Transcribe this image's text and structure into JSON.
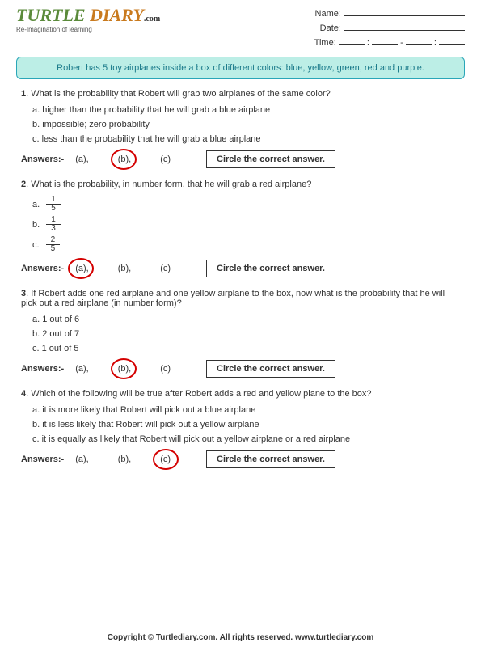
{
  "logo": {
    "part1": "TURTLE",
    "part2": "DIARY",
    "dotcom": ".com",
    "tagline": "Re-Imagination of learning"
  },
  "fields": {
    "name": "Name:",
    "date": "Date:",
    "time": "Time:",
    "colon": ":",
    "dash": "-"
  },
  "scenario": "Robert has 5 toy airplanes inside a box of different colors: blue, yellow, green, red and purple.",
  "answersLabel": "Answers:-",
  "circleText": "Circle the correct answer.",
  "choices": {
    "a": "(a),",
    "b": "(b),",
    "c": "(c)"
  },
  "q1": {
    "num": "1",
    "text": ".  What is the probability that Robert will grab two airplanes of the same color?",
    "a": "a. higher than the probability that he will grab a blue airplane",
    "b": "b. impossible; zero probability",
    "c": "c. less than the probability that he will grab a blue airplane",
    "correct": "b"
  },
  "q2": {
    "num": "2",
    "text": ". What is the probability, in number form, that he will grab a red airplane?",
    "a_label": "a.",
    "a_num": "1",
    "a_den": "5",
    "b_label": "b.",
    "b_num": "1",
    "b_den": "3",
    "c_label": "c.",
    "c_num": "2",
    "c_den": "5",
    "correct": "a"
  },
  "q3": {
    "num": "3",
    "text": ". If Robert adds one red airplane and one yellow airplane to the box, now what is the probability that he will pick out a red airplane (in number form)?",
    "a": "a. 1 out of 6",
    "b": "b. 2 out of 7",
    "c": "c. 1 out of 5",
    "correct": "b"
  },
  "q4": {
    "num": "4",
    "text": ". Which of the following will be true after Robert adds a red and yellow plane to the box?",
    "a": "a. it is more likely that Robert will pick out a blue airplane",
    "b": "b. it is less likely that Robert will pick out a yellow airplane",
    "c": "c. it is equally as likely that Robert will pick out a yellow airplane or a red airplane",
    "correct": "c"
  },
  "footer": "Copyright © Turtlediary.com. All rights reserved.  www.turtlediary.com"
}
